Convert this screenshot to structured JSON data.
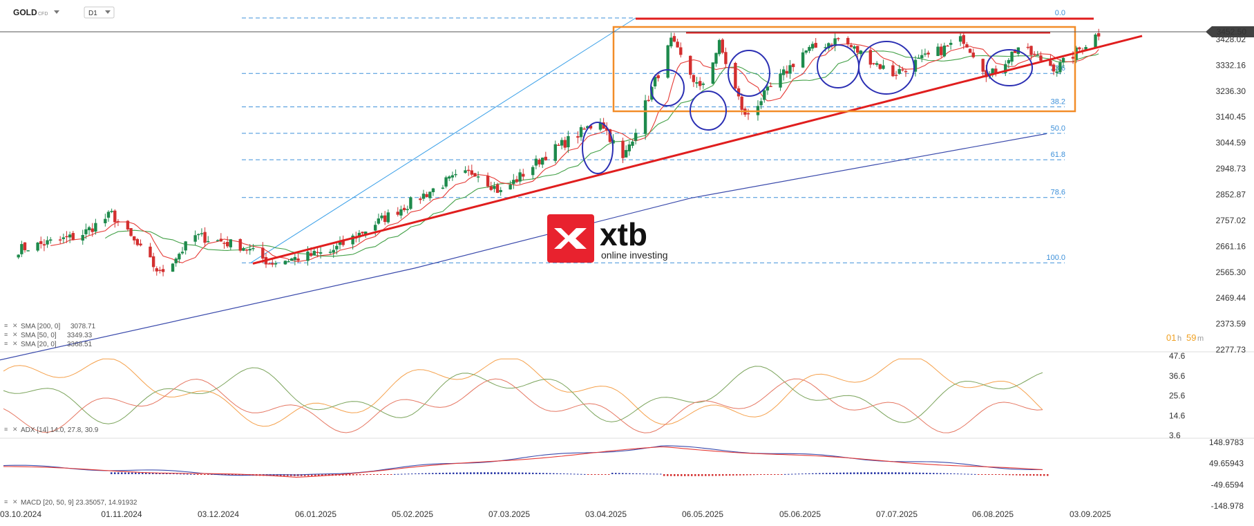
{
  "header": {
    "symbol": "GOLD",
    "instrument_type": "CFD",
    "interval": "D1"
  },
  "countdown": {
    "hours": "01",
    "hours_unit": "h",
    "minutes": "59",
    "minutes_unit": "m"
  },
  "logo": {
    "brand": "xtb",
    "tagline": "online investing"
  },
  "colors": {
    "bull": "#1e8a4c",
    "bear": "#d32f2f",
    "sma20": "#e53935",
    "sma50": "#43a047",
    "sma200": "#3949ab",
    "trend": "#e01e1e",
    "range_box": "#f28c28",
    "fib": "#3b8fd9",
    "circle": "#2b2fb3",
    "price_tag": "#424242",
    "logo_red": "#e8222e"
  },
  "chart_data": [
    {
      "type": "candlestick",
      "title": "GOLD CFD D1",
      "x_ticks": [
        "03.10.2024",
        "01.11.2024",
        "03.12.2024",
        "06.01.2025",
        "05.02.2025",
        "07.03.2025",
        "03.04.2025",
        "06.05.2025",
        "05.06.2025",
        "07.07.2025",
        "06.08.2025",
        "03.09.2025"
      ],
      "y_ticks": [
        3428.02,
        3332.16,
        3236.3,
        3140.45,
        3044.59,
        2948.73,
        2852.87,
        2757.02,
        2661.16,
        2565.3,
        2469.44,
        2373.59,
        2277.73
      ],
      "ylim": [
        2277.73,
        3428.02
      ],
      "last_price": "3452.50",
      "price_anchors": [
        {
          "date": "2024-10-01",
          "close": 2650
        },
        {
          "date": "2024-10-20",
          "close": 2700
        },
        {
          "date": "2024-10-30",
          "close": 2780
        },
        {
          "date": "2024-11-14",
          "close": 2560
        },
        {
          "date": "2024-11-25",
          "close": 2700
        },
        {
          "date": "2024-12-10",
          "close": 2660
        },
        {
          "date": "2024-12-18",
          "close": 2600
        },
        {
          "date": "2025-01-06",
          "close": 2640
        },
        {
          "date": "2025-01-22",
          "close": 2760
        },
        {
          "date": "2025-02-11",
          "close": 2900
        },
        {
          "date": "2025-02-20",
          "close": 2940
        },
        {
          "date": "2025-02-28",
          "close": 2860
        },
        {
          "date": "2025-03-14",
          "close": 3000
        },
        {
          "date": "2025-03-31",
          "close": 3130
        },
        {
          "date": "2025-04-07",
          "close": 2980
        },
        {
          "date": "2025-04-22",
          "close": 3420
        },
        {
          "date": "2025-05-01",
          "close": 3240
        },
        {
          "date": "2025-05-07",
          "close": 3410
        },
        {
          "date": "2025-05-15",
          "close": 3140
        },
        {
          "date": "2025-06-02",
          "close": 3380
        },
        {
          "date": "2025-06-13",
          "close": 3430
        },
        {
          "date": "2025-06-30",
          "close": 3300
        },
        {
          "date": "2025-07-22",
          "close": 3430
        },
        {
          "date": "2025-07-30",
          "close": 3290
        },
        {
          "date": "2025-08-08",
          "close": 3400
        },
        {
          "date": "2025-08-20",
          "close": 3320
        },
        {
          "date": "2025-09-02",
          "close": 3452
        }
      ],
      "fibonacci": {
        "levels": [
          {
            "label": "0.0",
            "value": 3500
          },
          {
            "label": "23.6",
            "value": 3302
          },
          {
            "label": "38.2",
            "value": 3178
          },
          {
            "label": "50.0",
            "value": 3080
          },
          {
            "label": "61.8",
            "value": 2982
          },
          {
            "label": "78.6",
            "value": 2842
          },
          {
            "label": "100.0",
            "value": 2600
          }
        ]
      },
      "indicators": [
        {
          "name": "SMA [200, 0]",
          "value": "3078.71"
        },
        {
          "name": "SMA [50, 0]",
          "value": "3349.33"
        },
        {
          "name": "SMA [20, 0]",
          "value": "3368.51"
        }
      ]
    },
    {
      "type": "line",
      "title": "ADX [14]",
      "label": "ADX [14] 14.0, 27.8, 30.9",
      "y_ticks": [
        47.6,
        36.6,
        25.6,
        14.6,
        3.6
      ],
      "ylim": [
        3.6,
        47.6
      ]
    },
    {
      "type": "bar",
      "title": "MACD [20, 50, 9]",
      "label": "MACD [20, 50, 9] 23.35057, 14.91932",
      "y_ticks": [
        "148.9783",
        "49.65943",
        "-49.6594",
        "-148.978"
      ],
      "ylim": [
        -148.978,
        148.9783
      ]
    }
  ]
}
